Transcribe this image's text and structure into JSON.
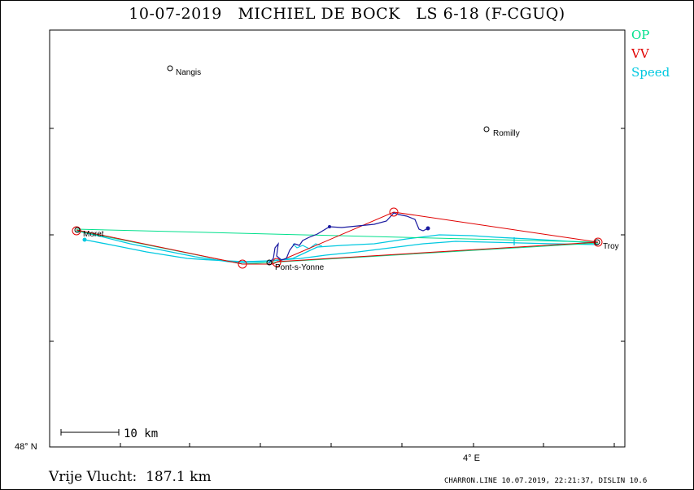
{
  "title": "10-07-2019   MICHIEL DE BOCK   LS 6-18 (F-CGUQ)",
  "legend": [
    {
      "label": "OP",
      "color": "#00e08c"
    },
    {
      "label": "VV",
      "color": "#e00000"
    },
    {
      "label": "Speed",
      "color": "#00c8e0"
    }
  ],
  "towns": [
    "Nangis",
    "Romilly",
    "Moret",
    "Pont-s-Yonne",
    "Troy"
  ],
  "scale_label": "10 km",
  "axis": {
    "lat_label": "48° N",
    "lon_label": "4° E"
  },
  "footer": {
    "distance": "Vrije Vlucht:  187.1 km",
    "software": "CHARRON.LINE 10.07.2019, 22:21:37, DISLIN 10.6"
  },
  "colors": {
    "track": "#1a1aa0",
    "op": "#00e08c",
    "vv": "#e00000",
    "speed": "#00c8e0"
  }
}
